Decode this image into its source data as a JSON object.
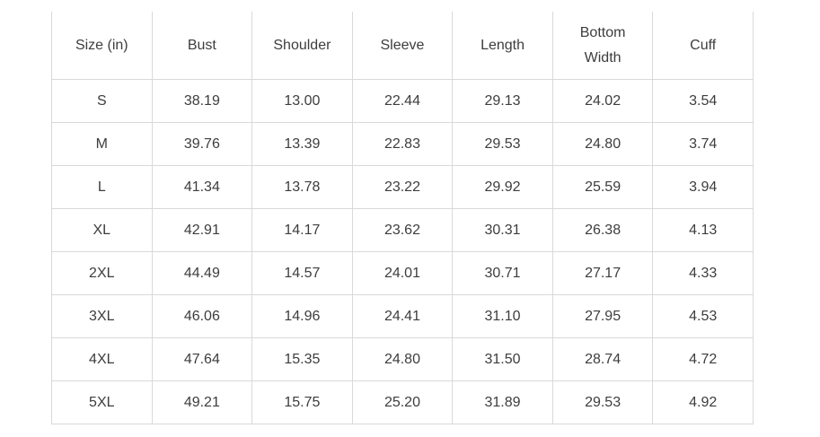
{
  "colors": {
    "background": "#ffffff",
    "border": "#d9d9d9",
    "text": "#3d3d3d"
  },
  "chart_data": {
    "type": "table",
    "title": "",
    "unit": "in",
    "columns": [
      "Size (in)",
      "Bust",
      "Shoulder",
      "Sleeve",
      "Length",
      "Bottom Width",
      "Cuff"
    ],
    "rows": [
      [
        "S",
        "38.19",
        "13.00",
        "22.44",
        "29.13",
        "24.02",
        "3.54"
      ],
      [
        "M",
        "39.76",
        "13.39",
        "22.83",
        "29.53",
        "24.80",
        "3.74"
      ],
      [
        "L",
        "41.34",
        "13.78",
        "23.22",
        "29.92",
        "25.59",
        "3.94"
      ],
      [
        "XL",
        "42.91",
        "14.17",
        "23.62",
        "30.31",
        "26.38",
        "4.13"
      ],
      [
        "2XL",
        "44.49",
        "14.57",
        "24.01",
        "30.71",
        "27.17",
        "4.33"
      ],
      [
        "3XL",
        "46.06",
        "14.96",
        "24.41",
        "31.10",
        "27.95",
        "4.53"
      ],
      [
        "4XL",
        "47.64",
        "15.35",
        "24.80",
        "31.50",
        "28.74",
        "4.72"
      ],
      [
        "5XL",
        "49.21",
        "15.75",
        "25.20",
        "31.89",
        "29.53",
        "4.92"
      ]
    ]
  }
}
